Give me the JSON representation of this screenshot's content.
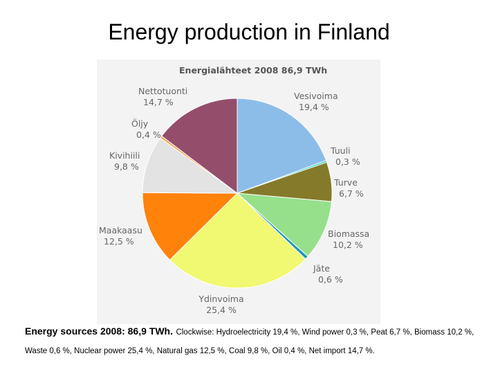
{
  "slide": {
    "title": "Energy production in Finland"
  },
  "caption": {
    "lead": "Energy sources 2008: 86,9 TWh.",
    "rest": "Clockwise: Hydroelectricity 19,4 %, Wind power 0,3 %, Peat 6,7 %, Biomass 10,2 %, Waste 0,6 %, Nuclear power 25,4 %, Natural gas 12,5 %, Coal 9,8 %, Oil 0,4 %, Net import 14,7 %."
  },
  "chart_data": {
    "type": "pie",
    "title": "Energialähteet 2008 86,9 TWh",
    "direction": "clockwise from top",
    "slices": [
      {
        "name": "Vesivoima",
        "value": 19.4,
        "label": "19,4 %",
        "color": "#8cbde9"
      },
      {
        "name": "Tuuli",
        "value": 0.3,
        "label": "0,3 %",
        "color": "#22cbb1"
      },
      {
        "name": "Turve",
        "value": 6.7,
        "label": "6,7 %",
        "color": "#857a2a"
      },
      {
        "name": "Biomassa",
        "value": 10.2,
        "label": "10,2 %",
        "color": "#96e08c"
      },
      {
        "name": "Jäte",
        "value": 0.6,
        "label": "0,6 %",
        "color": "#1f97b8"
      },
      {
        "name": "Ydinvoima",
        "value": 25.4,
        "label": "25,4 %",
        "color": "#f1f872"
      },
      {
        "name": "Maakaasu",
        "value": 12.5,
        "label": "12,5 %",
        "color": "#ff820a"
      },
      {
        "name": "Kivihiili",
        "value": 9.8,
        "label": "9,8 %",
        "color": "#e3e3e3"
      },
      {
        "name": "Öljy",
        "value": 0.4,
        "label": "0,4 %",
        "color": "#f0a24a"
      },
      {
        "name": "Nettotuonti",
        "value": 14.7,
        "label": "14,7 %",
        "color": "#944e6c"
      }
    ]
  }
}
